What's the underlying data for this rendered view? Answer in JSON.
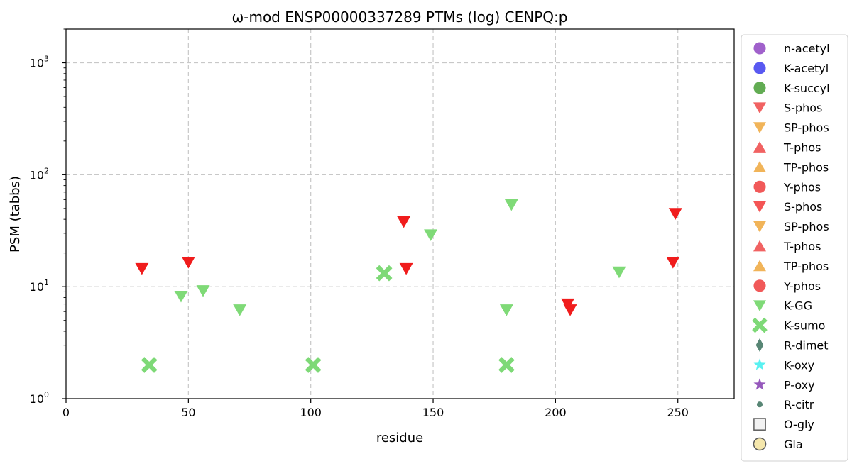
{
  "chart_data": {
    "type": "scatter",
    "title": "ω-mod ENSP00000337289 PTMs (log) CENPQ:p",
    "xlabel": "residue",
    "ylabel": "PSM (tabbs)",
    "xlim": [
      0,
      273
    ],
    "ylim": [
      1,
      2000
    ],
    "yscale": "log",
    "grid": true,
    "legend_placement": "right-outside",
    "x_ticks": [
      0,
      50,
      100,
      150,
      200,
      250
    ],
    "y_ticks": [
      {
        "value": 1,
        "base": "10",
        "exp": "0"
      },
      {
        "value": 10,
        "base": "10",
        "exp": "1"
      },
      {
        "value": 100,
        "base": "10",
        "exp": "2"
      },
      {
        "value": 1000,
        "base": "10",
        "exp": "3"
      }
    ],
    "series": [
      {
        "name": "n-acetyl",
        "marker": "circle",
        "color": "#9b59c8",
        "points": []
      },
      {
        "name": "K-acetyl",
        "marker": "circle",
        "color": "#5050f0",
        "points": []
      },
      {
        "name": "K-succyl",
        "marker": "circle",
        "color": "#5aa84a",
        "points": []
      },
      {
        "name": "S-phos",
        "marker": "triangle-down",
        "color": "#f05a5a",
        "points": []
      },
      {
        "name": "SP-phos",
        "marker": "triangle-down",
        "color": "#f0b050",
        "points": []
      },
      {
        "name": "T-phos",
        "marker": "triangle-up",
        "color": "#f05a5a",
        "points": []
      },
      {
        "name": "TP-phos",
        "marker": "triangle-up",
        "color": "#f0b050",
        "points": []
      },
      {
        "name": "Y-phos",
        "marker": "circle",
        "color": "#f05050",
        "points": []
      },
      {
        "name": "S-phos",
        "marker": "triangle-down",
        "color": "#f01c1c",
        "points": [
          [
            31,
            14.5
          ],
          [
            50,
            16.5
          ],
          [
            138,
            38
          ],
          [
            139,
            14.5
          ],
          [
            205,
            7
          ],
          [
            206,
            6.2
          ],
          [
            248,
            16.5
          ],
          [
            249,
            45
          ]
        ]
      },
      {
        "name": "SP-phos",
        "marker": "triangle-down",
        "color": "#f0b050",
        "points": []
      },
      {
        "name": "T-phos",
        "marker": "triangle-up",
        "color": "#f05a5a",
        "points": []
      },
      {
        "name": "TP-phos",
        "marker": "triangle-up",
        "color": "#f0b050",
        "points": []
      },
      {
        "name": "Y-phos",
        "marker": "circle",
        "color": "#f05050",
        "points": []
      },
      {
        "name": "K-GG",
        "marker": "triangle-down",
        "color": "#78d870",
        "points": [
          [
            47,
            8.2
          ],
          [
            56,
            9.2
          ],
          [
            71,
            6.2
          ],
          [
            149,
            29
          ],
          [
            180,
            6.2
          ],
          [
            182,
            54
          ],
          [
            226,
            13.5
          ]
        ]
      },
      {
        "name": "K-sumo",
        "marker": "x",
        "color": "#78d870",
        "points": [
          [
            34,
            2
          ],
          [
            101,
            2
          ],
          [
            130,
            13.2
          ],
          [
            180,
            2
          ]
        ]
      },
      {
        "name": "R-dimet",
        "marker": "diamond",
        "color": "#4f7f6e",
        "points": []
      },
      {
        "name": "K-oxy",
        "marker": "star",
        "color": "#50f0f0",
        "points": []
      },
      {
        "name": "P-oxy",
        "marker": "star",
        "color": "#9050b8",
        "points": []
      },
      {
        "name": "R-citr",
        "marker": "dot",
        "color": "#4f7f6e",
        "points": []
      },
      {
        "name": "O-gly",
        "marker": "square-open",
        "color": "#f2f2f2",
        "edge": "#555555",
        "points": []
      },
      {
        "name": "Gla",
        "marker": "circle-open",
        "color": "#f5e6a8",
        "edge": "#555555",
        "points": []
      }
    ]
  }
}
